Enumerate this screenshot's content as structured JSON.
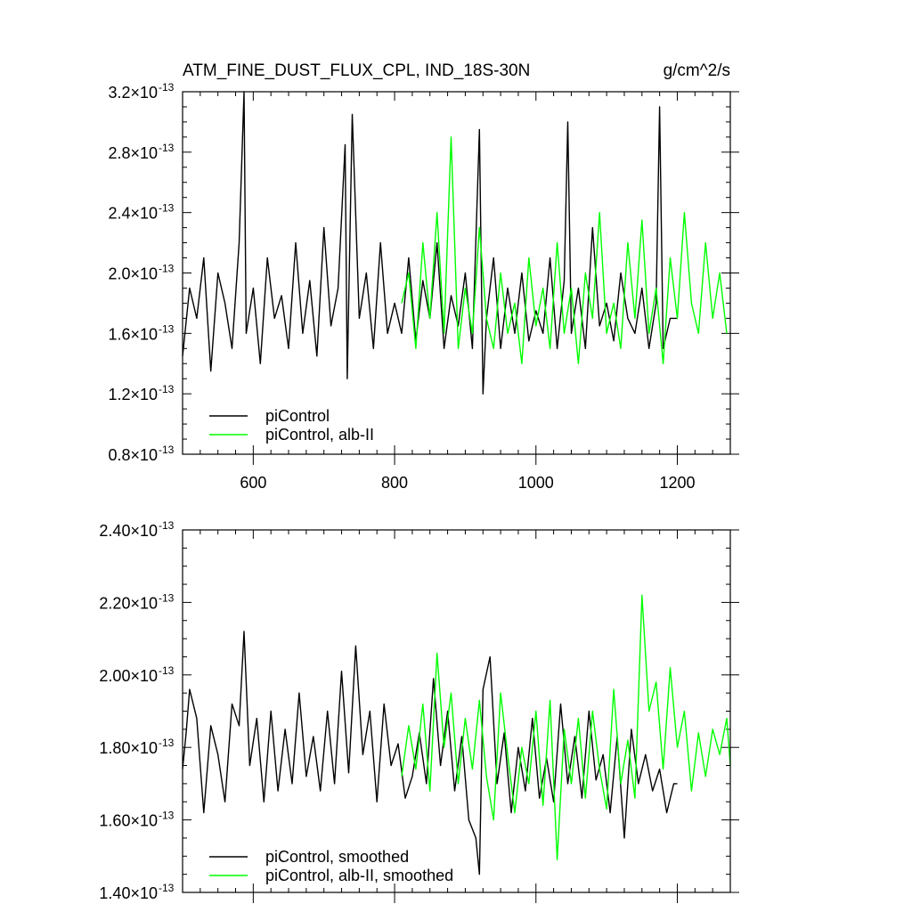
{
  "chart_data": [
    {
      "type": "line",
      "title": "ATM_FINE_DUST_FLUX_CPL, IND_18S-30N",
      "units": "g/cm^2/s",
      "xlim": [
        500,
        1275
      ],
      "ylim": [
        8e-14,
        3.2e-13
      ],
      "x_ticks": [
        600,
        800,
        1000,
        1200
      ],
      "y_ticks": [
        {
          "value": 3.2e-13,
          "mantissa": "3.2",
          "exponent": "-13"
        },
        {
          "value": 2.8e-13,
          "mantissa": "2.8",
          "exponent": "-13"
        },
        {
          "value": 2.4e-13,
          "mantissa": "2.4",
          "exponent": "-13"
        },
        {
          "value": 2e-13,
          "mantissa": "2.0",
          "exponent": "-13"
        },
        {
          "value": 1.6e-13,
          "mantissa": "1.6",
          "exponent": "-13"
        },
        {
          "value": 1.2e-13,
          "mantissa": "1.2",
          "exponent": "-13"
        },
        {
          "value": 8e-14,
          "mantissa": "0.8",
          "exponent": "-13"
        }
      ],
      "series": [
        {
          "name": "piControl",
          "color": "#000000",
          "x": [
            500,
            510,
            520,
            530,
            540,
            550,
            560,
            570,
            580,
            587,
            590,
            600,
            610,
            620,
            630,
            640,
            650,
            660,
            670,
            680,
            690,
            700,
            710,
            720,
            730,
            733,
            740,
            750,
            760,
            770,
            780,
            790,
            800,
            810,
            820,
            830,
            840,
            850,
            860,
            870,
            880,
            890,
            900,
            910,
            920,
            925,
            930,
            940,
            950,
            960,
            970,
            980,
            990,
            1000,
            1010,
            1020,
            1030,
            1040,
            1045,
            1050,
            1060,
            1070,
            1080,
            1090,
            1100,
            1110,
            1120,
            1130,
            1140,
            1150,
            1160,
            1170,
            1175,
            1180,
            1190,
            1200
          ],
          "y": [
            1.45,
            1.9,
            1.7,
            2.1,
            1.35,
            2.0,
            1.8,
            1.5,
            2.2,
            3.2,
            1.6,
            1.9,
            1.4,
            2.1,
            1.7,
            1.85,
            1.5,
            2.2,
            1.6,
            1.95,
            1.45,
            2.3,
            1.65,
            1.9,
            2.85,
            1.3,
            3.05,
            1.7,
            2.0,
            1.5,
            2.2,
            1.6,
            1.8,
            1.6,
            2.1,
            1.55,
            1.95,
            1.7,
            2.2,
            1.5,
            1.85,
            1.65,
            2.0,
            1.5,
            2.95,
            1.2,
            1.7,
            2.1,
            1.5,
            1.9,
            1.6,
            2.0,
            1.55,
            1.75,
            1.6,
            2.1,
            1.5,
            1.95,
            3.0,
            1.6,
            1.9,
            1.5,
            2.3,
            1.65,
            1.8,
            1.55,
            2.0,
            1.7,
            1.6,
            1.9,
            1.5,
            1.8,
            3.1,
            1.5,
            1.7,
            1.7
          ]
        },
        {
          "name": "piControl, alb-II",
          "color": "#00ff00",
          "x": [
            810,
            820,
            830,
            840,
            850,
            860,
            870,
            880,
            890,
            900,
            910,
            920,
            930,
            940,
            950,
            960,
            970,
            980,
            990,
            1000,
            1010,
            1020,
            1030,
            1040,
            1050,
            1060,
            1070,
            1080,
            1090,
            1100,
            1110,
            1120,
            1130,
            1140,
            1150,
            1160,
            1170,
            1180,
            1190,
            1200,
            1210,
            1220,
            1230,
            1240,
            1250,
            1260,
            1270
          ],
          "y": [
            1.8,
            2.0,
            1.5,
            2.2,
            1.7,
            2.4,
            1.6,
            2.9,
            1.5,
            1.9,
            1.6,
            2.3,
            1.7,
            1.5,
            2.0,
            1.6,
            1.8,
            1.4,
            2.1,
            1.65,
            1.9,
            1.5,
            2.2,
            1.6,
            1.9,
            1.4,
            2.0,
            1.7,
            2.4,
            1.6,
            1.8,
            1.5,
            2.2,
            1.7,
            2.35,
            1.6,
            1.9,
            1.4,
            2.1,
            1.7,
            2.4,
            1.8,
            1.6,
            2.2,
            1.7,
            2.0,
            1.6
          ]
        }
      ]
    },
    {
      "type": "line",
      "xlim": [
        500,
        1275
      ],
      "ylim": [
        1.4e-13,
        2.4e-13
      ],
      "x_ticks": [
        600,
        800,
        1000,
        1200
      ],
      "y_ticks": [
        {
          "value": 2.4e-13,
          "mantissa": "2.40",
          "exponent": "-13"
        },
        {
          "value": 2.2e-13,
          "mantissa": "2.20",
          "exponent": "-13"
        },
        {
          "value": 2e-13,
          "mantissa": "2.00",
          "exponent": "-13"
        },
        {
          "value": 1.8e-13,
          "mantissa": "1.80",
          "exponent": "-13"
        },
        {
          "value": 1.6e-13,
          "mantissa": "1.60",
          "exponent": "-13"
        },
        {
          "value": 1.4e-13,
          "mantissa": "1.40",
          "exponent": "-13"
        }
      ],
      "series": [
        {
          "name": "piControl, smoothed",
          "color": "#000000",
          "x": [
            500,
            505,
            510,
            520,
            530,
            540,
            550,
            560,
            570,
            580,
            587,
            595,
            605,
            615,
            625,
            635,
            645,
            655,
            665,
            675,
            685,
            695,
            705,
            715,
            725,
            735,
            745,
            755,
            765,
            775,
            785,
            795,
            805,
            815,
            825,
            835,
            845,
            855,
            865,
            875,
            885,
            895,
            905,
            915,
            920,
            925,
            935,
            945,
            955,
            965,
            975,
            985,
            995,
            1005,
            1015,
            1025,
            1035,
            1045,
            1055,
            1065,
            1075,
            1085,
            1095,
            1105,
            1115,
            1125,
            1135,
            1145,
            1155,
            1165,
            1175,
            1185,
            1195,
            1200
          ],
          "y": [
            1.74,
            1.84,
            1.96,
            1.88,
            1.62,
            1.86,
            1.78,
            1.65,
            1.92,
            1.86,
            2.12,
            1.75,
            1.88,
            1.65,
            1.9,
            1.68,
            1.85,
            1.7,
            1.95,
            1.72,
            1.83,
            1.68,
            1.9,
            1.7,
            2.01,
            1.73,
            2.08,
            1.78,
            1.9,
            1.65,
            1.92,
            1.75,
            1.81,
            1.66,
            1.72,
            1.84,
            1.7,
            1.99,
            1.75,
            1.9,
            1.68,
            1.83,
            1.6,
            1.55,
            1.45,
            1.96,
            2.05,
            1.7,
            1.84,
            1.62,
            1.8,
            1.68,
            1.88,
            1.66,
            1.77,
            1.65,
            1.92,
            1.7,
            1.83,
            1.66,
            1.9,
            1.71,
            1.78,
            1.62,
            1.83,
            1.55,
            1.85,
            1.7,
            1.78,
            1.68,
            1.74,
            1.62,
            1.7,
            1.7
          ]
        },
        {
          "name": "piControl, alb-II, smoothed",
          "color": "#00ff00",
          "x": [
            810,
            820,
            830,
            840,
            850,
            860,
            870,
            880,
            890,
            900,
            910,
            920,
            930,
            940,
            950,
            960,
            970,
            980,
            990,
            1000,
            1010,
            1020,
            1030,
            1040,
            1050,
            1060,
            1070,
            1080,
            1090,
            1100,
            1110,
            1120,
            1130,
            1140,
            1150,
            1160,
            1170,
            1180,
            1190,
            1200,
            1210,
            1220,
            1230,
            1240,
            1250,
            1260,
            1270,
            1275
          ],
          "y": [
            1.72,
            1.86,
            1.74,
            1.92,
            1.68,
            2.06,
            1.8,
            1.95,
            1.7,
            1.88,
            1.74,
            1.93,
            1.72,
            1.6,
            1.95,
            1.78,
            1.62,
            1.8,
            1.7,
            1.9,
            1.64,
            1.93,
            1.49,
            1.85,
            1.7,
            1.88,
            1.66,
            1.9,
            1.74,
            1.63,
            1.96,
            1.7,
            1.82,
            1.66,
            2.22,
            1.9,
            1.98,
            1.74,
            2.02,
            1.8,
            1.9,
            1.68,
            1.84,
            1.72,
            1.85,
            1.78,
            1.88,
            1.75
          ]
        }
      ]
    }
  ]
}
